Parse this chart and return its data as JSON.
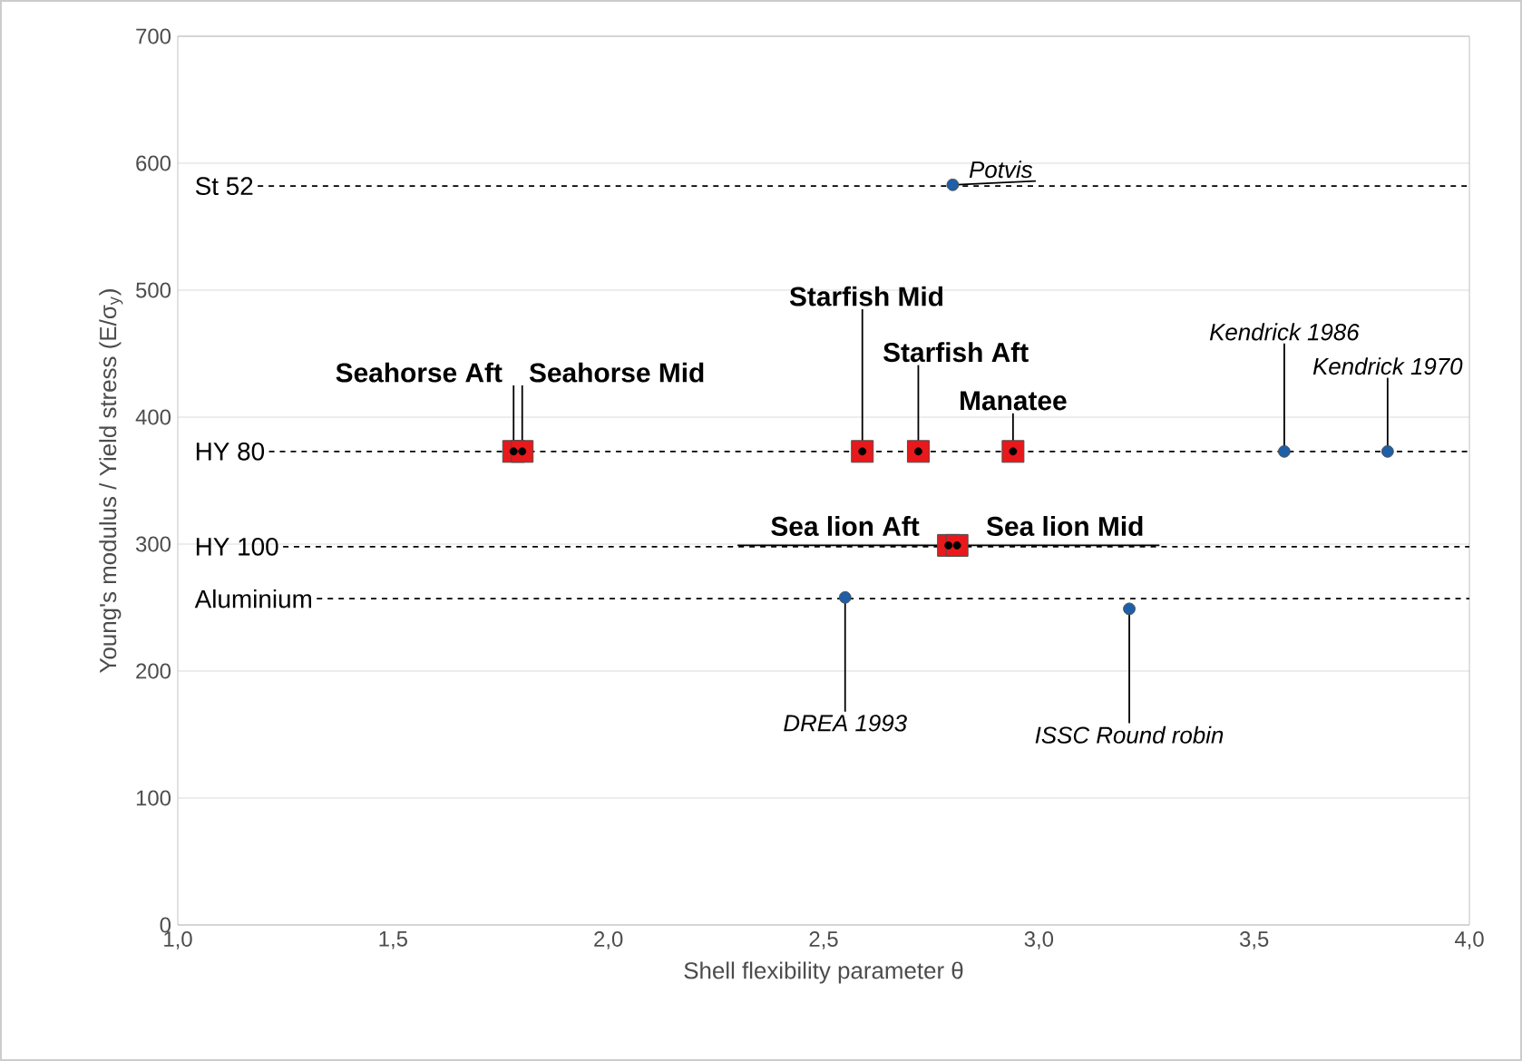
{
  "chart_data": {
    "type": "scatter",
    "xlabel": "Shell flexibility parameter θ",
    "ylabel": "Young's modulus / Yield stress (E/σ$_{y}$)",
    "series": [
      {
        "color": "#1f5fa8",
        "marker": "circle",
        "x": [
          2.8,
          3.57,
          3.81,
          2.55,
          3.21
        ],
        "values": [
          583,
          373,
          373,
          258,
          249
        ]
      },
      {
        "color": "#e8191c",
        "marker": "square",
        "x": [
          1.78,
          1.8,
          2.59,
          2.72,
          2.94,
          2.79,
          2.81
        ],
        "values": [
          373,
          373,
          373,
          373,
          373,
          299,
          299
        ]
      }
    ],
    "xlim": [
      1.0,
      4.0
    ],
    "xticks": [
      {
        "value": 1.0,
        "label": "1,0"
      },
      {
        "value": 1.5,
        "label": "1,5"
      },
      {
        "value": 2.0,
        "label": "2,0"
      },
      {
        "value": 2.5,
        "label": "2,5"
      },
      {
        "value": 3.0,
        "label": "3,0"
      },
      {
        "value": 3.5,
        "label": "3,5"
      },
      {
        "value": 4.0,
        "label": "4,0"
      }
    ],
    "ylim": [
      0,
      700
    ],
    "yticks": [
      0,
      100,
      200,
      300,
      400,
      500,
      600,
      700
    ],
    "grid": "y",
    "ref_lines": [
      {
        "axis": "y",
        "value": 582,
        "label": "St 52",
        "color": "#000000",
        "line_style": "dashed"
      },
      {
        "axis": "y",
        "value": 373,
        "label": "HY 80",
        "color": "#000000",
        "line_style": "dashed"
      },
      {
        "axis": "y",
        "value": 298,
        "label": "HY 100",
        "color": "#000000",
        "line_style": "dashed"
      },
      {
        "axis": "y",
        "value": 257,
        "label": "Aluminium",
        "color": "#000000",
        "line_style": "dashed"
      }
    ],
    "annotations": [
      {
        "text": "Potvis",
        "x": 2.8,
        "y": 583
      },
      {
        "text": "Kendrick 1986",
        "x": 3.57,
        "y": 373
      },
      {
        "text": "Kendrick 1970",
        "x": 3.81,
        "y": 373
      },
      {
        "text": "DREA 1993",
        "x": 2.55,
        "y": 258
      },
      {
        "text": "ISSC Round robin",
        "x": 3.21,
        "y": 249
      },
      {
        "text": "Seahorse Aft",
        "x": 1.78,
        "y": 373
      },
      {
        "text": "Seahorse Mid",
        "x": 1.8,
        "y": 373
      },
      {
        "text": "Starfish Mid",
        "x": 2.59,
        "y": 373
      },
      {
        "text": "Starfish Aft",
        "x": 2.72,
        "y": 373
      },
      {
        "text": "Manatee",
        "x": 2.94,
        "y": 373
      },
      {
        "text": "Sea lion Aft",
        "x": 2.79,
        "y": 299
      },
      {
        "text": "Sea lion Mid",
        "x": 2.81,
        "y": 299
      }
    ]
  }
}
